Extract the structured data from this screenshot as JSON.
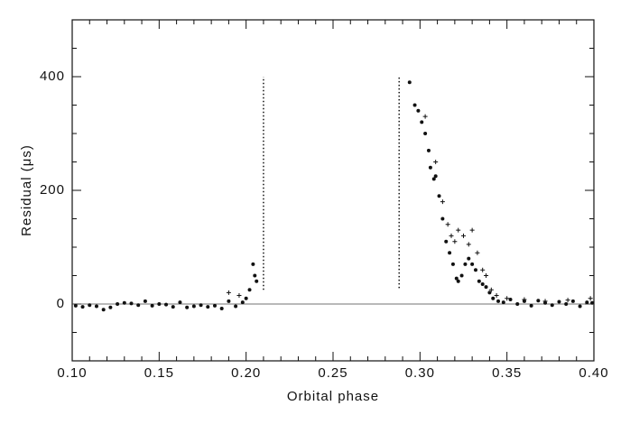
{
  "chart_data": {
    "type": "scatter",
    "x_label": "Orbital phase",
    "y_label": "Residual (μs)",
    "xlim": [
      0.1,
      0.4
    ],
    "ylim": [
      -100,
      500
    ],
    "xticks": [
      {
        "value": 0.1,
        "label": "0.10"
      },
      0.15,
      {
        "value": 0.2,
        "label": "0.20"
      },
      0.25,
      {
        "value": 0.3,
        "label": "0.30"
      },
      0.35,
      {
        "value": 0.4,
        "label": "0.40"
      }
    ],
    "yticks": [
      0,
      200,
      400
    ],
    "xminorticks": [
      0.11,
      0.12,
      0.13,
      0.14,
      0.16,
      0.17,
      0.18,
      0.19,
      0.21,
      0.22,
      0.23,
      0.24,
      0.26,
      0.27,
      0.28,
      0.29,
      0.31,
      0.32,
      0.33,
      0.34,
      0.36,
      0.37,
      0.38,
      0.39
    ],
    "yminorticks": [
      -50,
      50,
      100,
      150,
      250,
      300,
      350,
      450
    ],
    "hline": 0,
    "vlines": [
      {
        "x": 0.21,
        "ymin": 25,
        "ymax": 400
      },
      {
        "x": 0.288,
        "ymin": 28,
        "ymax": 402
      }
    ],
    "color": "#111111",
    "series": [
      {
        "marker": "dot",
        "x": [
          0.102,
          0.106,
          0.11,
          0.114,
          0.118,
          0.122,
          0.126,
          0.13,
          0.134,
          0.138,
          0.142,
          0.146,
          0.15,
          0.154,
          0.158,
          0.162,
          0.166,
          0.17,
          0.174,
          0.178,
          0.182,
          0.186,
          0.19,
          0.194,
          0.198,
          0.2,
          0.202,
          0.204,
          0.205,
          0.206,
          0.294,
          0.297,
          0.299,
          0.301,
          0.303,
          0.305,
          0.306,
          0.308,
          0.309,
          0.311,
          0.313,
          0.315,
          0.317,
          0.319,
          0.321,
          0.322,
          0.324,
          0.326,
          0.328,
          0.33,
          0.332,
          0.334,
          0.336,
          0.338,
          0.34,
          0.342,
          0.345,
          0.348,
          0.352,
          0.356,
          0.36,
          0.364,
          0.368,
          0.372,
          0.376,
          0.38,
          0.384,
          0.388,
          0.392,
          0.396,
          0.399
        ],
        "values": [
          -3,
          -5,
          -2,
          -4,
          -10,
          -6,
          0,
          2,
          1,
          -2,
          5,
          -3,
          0,
          -1,
          -5,
          3,
          -6,
          -4,
          -2,
          -5,
          -3,
          -8,
          5,
          -4,
          3,
          10,
          25,
          70,
          50,
          40,
          390,
          350,
          340,
          320,
          300,
          270,
          240,
          220,
          225,
          190,
          150,
          110,
          90,
          70,
          45,
          40,
          50,
          70,
          80,
          70,
          60,
          40,
          35,
          30,
          20,
          10,
          5,
          3,
          8,
          0,
          5,
          -3,
          6,
          2,
          -2,
          4,
          0,
          5,
          -4,
          3,
          2
        ]
      },
      {
        "marker": "plus",
        "x": [
          0.19,
          0.196,
          0.303,
          0.309,
          0.313,
          0.316,
          0.318,
          0.32,
          0.322,
          0.325,
          0.328,
          0.33,
          0.333,
          0.336,
          0.338,
          0.341,
          0.344,
          0.35,
          0.36,
          0.372,
          0.385,
          0.398
        ],
        "values": [
          20,
          15,
          330,
          250,
          180,
          140,
          120,
          110,
          130,
          120,
          105,
          130,
          90,
          60,
          50,
          25,
          15,
          10,
          8,
          5,
          7,
          10
        ]
      }
    ]
  }
}
